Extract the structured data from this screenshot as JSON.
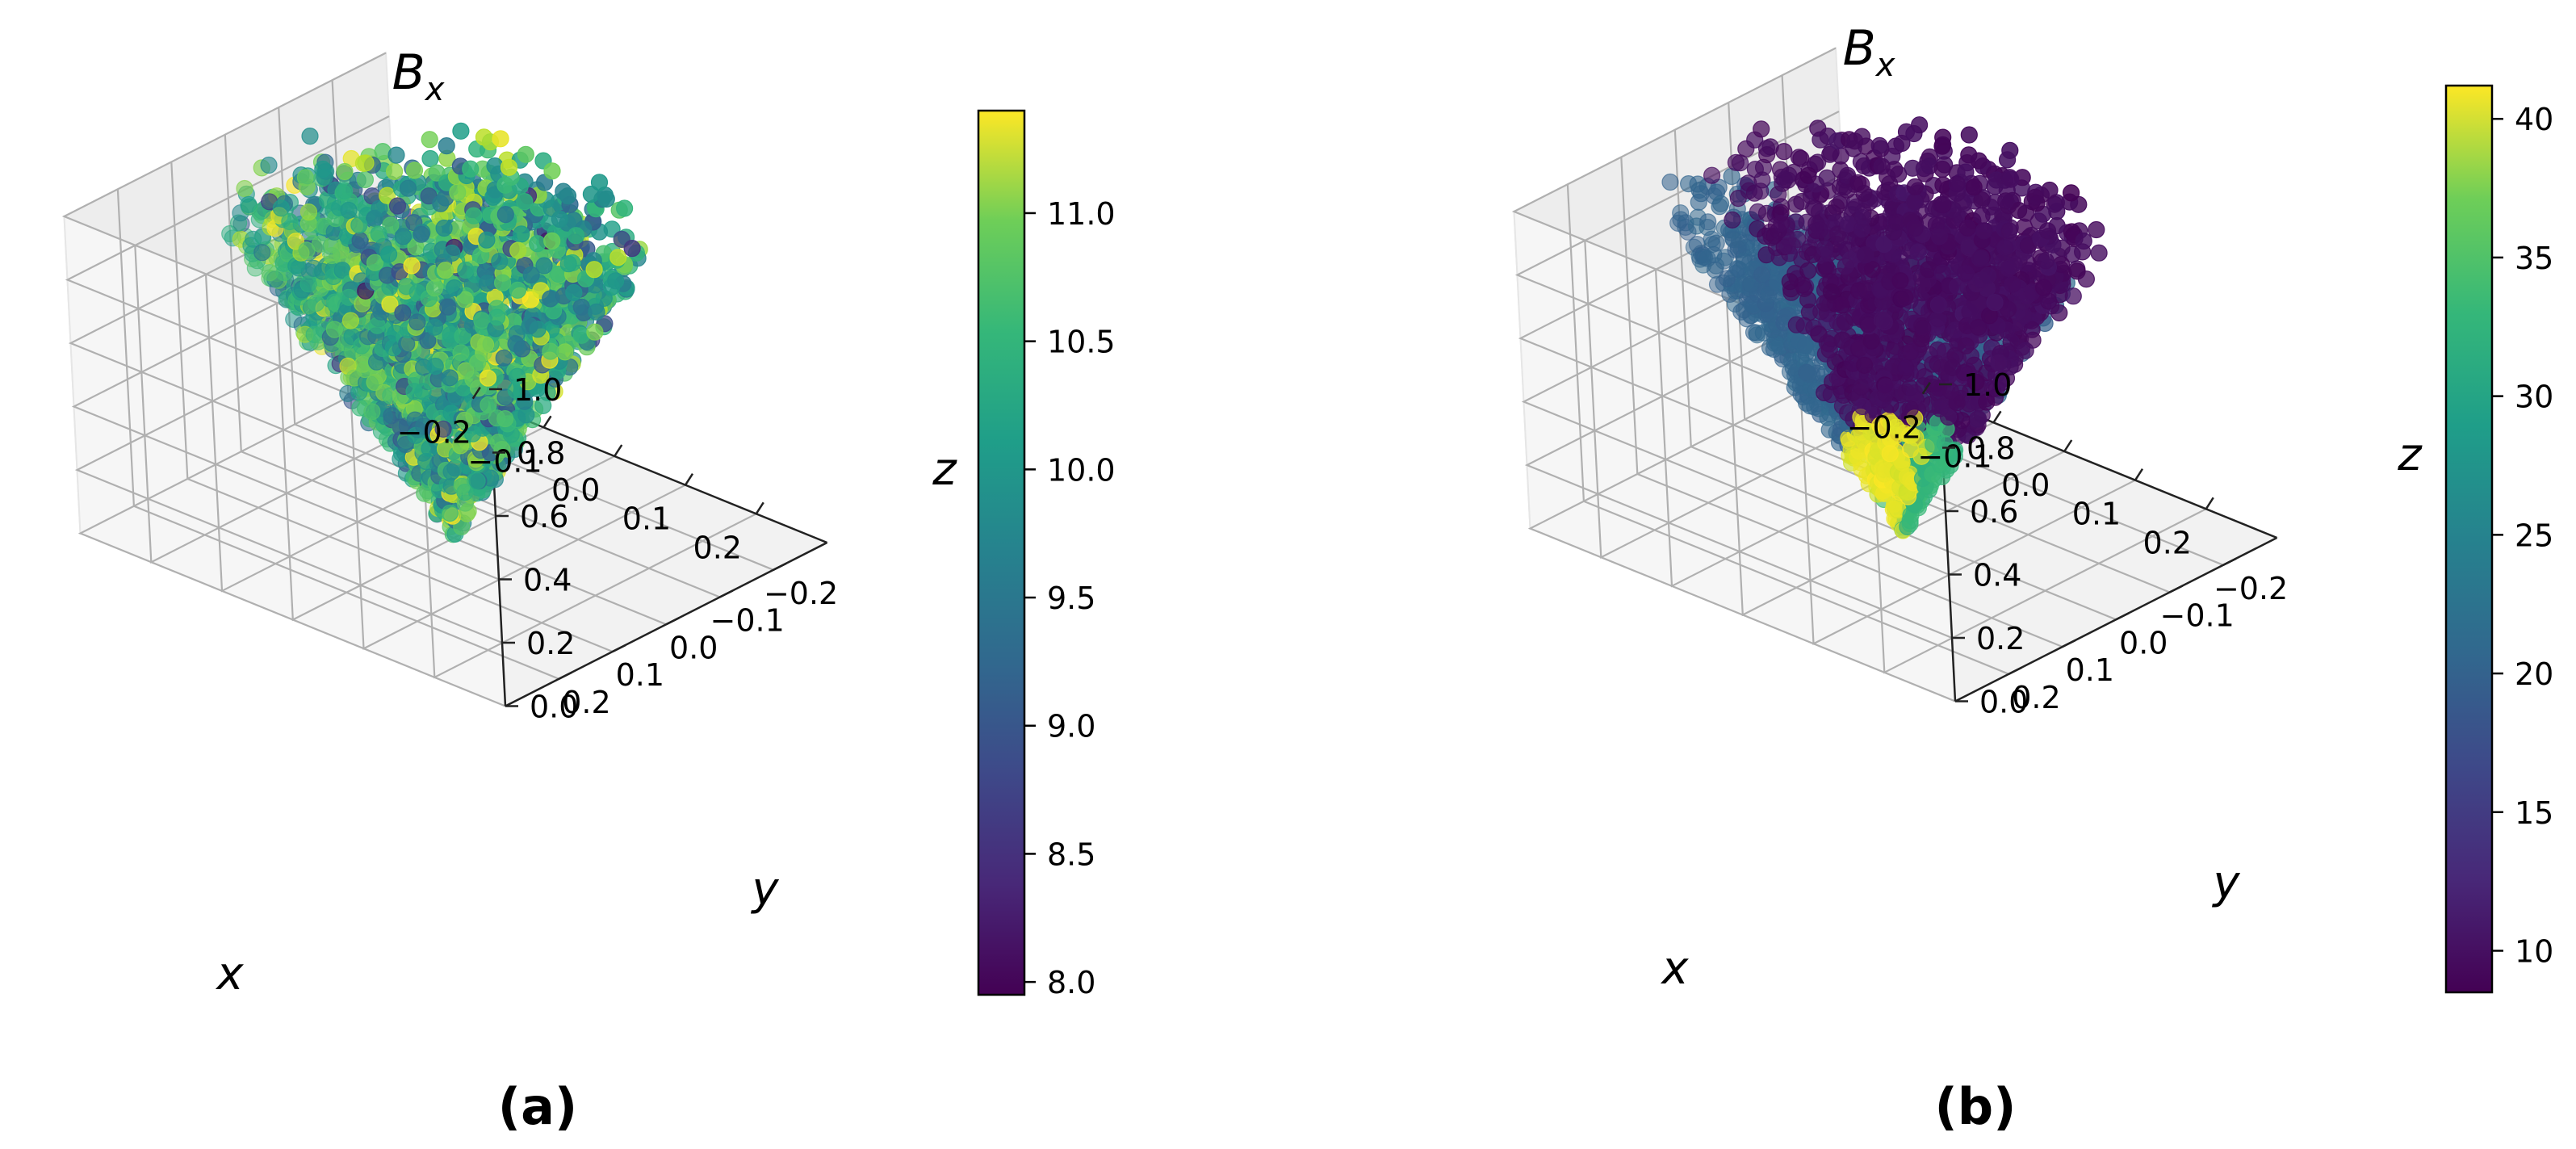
{
  "chart_data": [
    {
      "type": "scatter3d",
      "panel_label": "(a)",
      "title_main": "B",
      "title_sub": "x",
      "xlabel": "x",
      "ylabel": "y",
      "zlabel": "z",
      "xlim": [
        -0.3,
        0.3
      ],
      "ylim": [
        -0.3,
        0.3
      ],
      "zlim": [
        0.0,
        1.0
      ],
      "x_ticks": [
        "−0.2",
        "−0.1",
        "0.0",
        "0.1",
        "0.2"
      ],
      "y_ticks": [
        "−0.2",
        "−0.1",
        "0.0",
        "0.1",
        "0.2"
      ],
      "z_ticks": [
        "0.0",
        "0.2",
        "0.4",
        "0.6",
        "0.8",
        "1.0"
      ],
      "colorbar": {
        "colormap": "viridis",
        "range": [
          7.95,
          11.4
        ],
        "ticks": [
          "8.0",
          "8.5",
          "9.0",
          "9.5",
          "10.0",
          "10.5",
          "11.0"
        ],
        "tick_values": [
          8.0,
          8.5,
          9.0,
          9.5,
          10.0,
          10.5,
          11.0
        ]
      },
      "field_pattern": "noisy",
      "field_mean": 10.0,
      "field_spread": 0.9,
      "geometry": "cone with apex at origin and circular opening at z = 1.0, filled with points",
      "grid": true
    },
    {
      "type": "scatter3d",
      "panel_label": "(b)",
      "title_main": "B",
      "title_sub": "x",
      "xlabel": "x",
      "ylabel": "y",
      "zlabel": "z",
      "xlim": [
        -0.3,
        0.3
      ],
      "ylim": [
        -0.3,
        0.3
      ],
      "zlim": [
        0.0,
        1.0
      ],
      "x_ticks": [
        "−0.2",
        "−0.1",
        "0.0",
        "0.1",
        "0.2"
      ],
      "y_ticks": [
        "−0.2",
        "−0.1",
        "0.0",
        "0.1",
        "0.2"
      ],
      "z_ticks": [
        "0.0",
        "0.2",
        "0.4",
        "0.6",
        "0.8",
        "1.0"
      ],
      "colorbar": {
        "colormap": "viridis",
        "range": [
          8.5,
          41.2
        ],
        "ticks": [
          "10",
          "15",
          "20",
          "25",
          "30",
          "35",
          "40"
        ],
        "tick_values": [
          10,
          15,
          20,
          25,
          30,
          35,
          40
        ]
      },
      "field_pattern": "regions",
      "field_regions": {
        "back_half_value": 19.0,
        "front_half_value": 9.5,
        "apex_left_value": 40.0,
        "apex_right_value": 30.0,
        "apex_z_max": 0.3
      },
      "geometry": "cone with apex at origin and circular opening at z = 1.0, filled with points",
      "grid": true
    }
  ]
}
